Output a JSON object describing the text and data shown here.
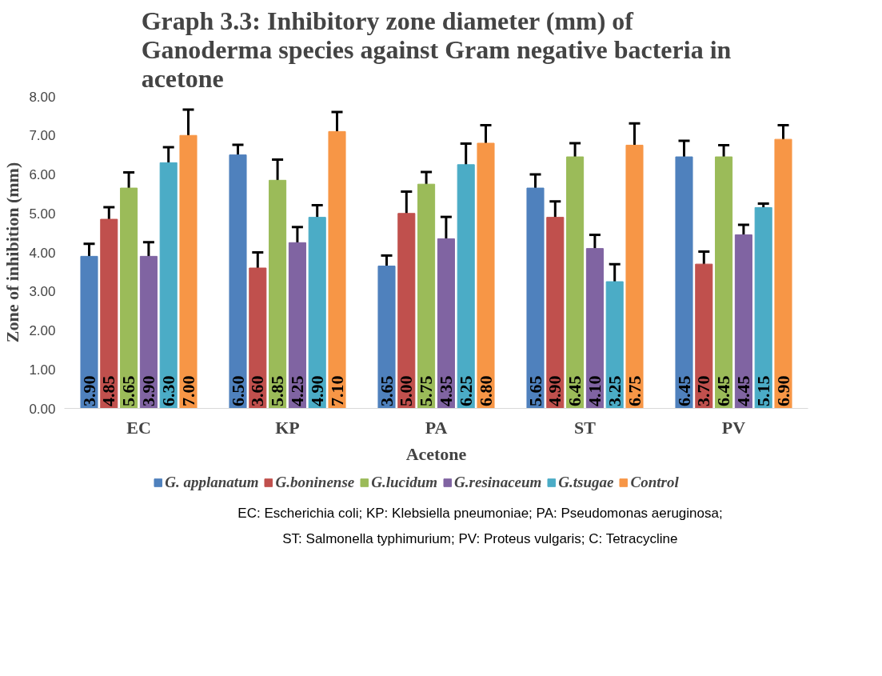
{
  "chart_data": {
    "type": "bar",
    "title": "Graph 3.3: Inhibitory zone diameter (mm) of Ganoderma species against Gram negative bacteria in acetone",
    "xlabel": "Acetone",
    "ylabel": "Zone of inhibition (mm)",
    "categories": [
      "EC",
      "KP",
      "PA",
      "ST",
      "PV"
    ],
    "series": [
      {
        "name": "G. applanatum",
        "color": "#4f81bd",
        "values": [
          3.9,
          6.5,
          3.65,
          5.65,
          6.45
        ],
        "value_labels": [
          "3.90",
          "6.50",
          "3.65",
          "5.65",
          "6.45"
        ],
        "errors": [
          0.32,
          0.26,
          0.27,
          0.35,
          0.41
        ]
      },
      {
        "name": "G.boninense",
        "color": "#c0504d",
        "values": [
          4.85,
          3.6,
          5.0,
          4.9,
          3.7
        ],
        "value_labels": [
          "4.85",
          "3.60",
          "5.00",
          "4.90",
          "3.70"
        ],
        "errors": [
          0.31,
          0.4,
          0.56,
          0.41,
          0.32
        ]
      },
      {
        "name": "G.lucidum",
        "color": "#9bbb59",
        "values": [
          5.65,
          5.85,
          5.75,
          6.45,
          6.45
        ],
        "value_labels": [
          "5.65",
          "5.85",
          "5.75",
          "6.45",
          "6.45"
        ],
        "errors": [
          0.4,
          0.53,
          0.31,
          0.35,
          0.3
        ]
      },
      {
        "name": "G.resinaceum",
        "color": "#8064a2",
        "values": [
          3.9,
          4.25,
          4.35,
          4.1,
          4.45
        ],
        "value_labels": [
          "3.90",
          "4.25",
          "4.35",
          "4.10",
          "4.45"
        ],
        "errors": [
          0.36,
          0.4,
          0.56,
          0.35,
          0.26
        ]
      },
      {
        "name": "G.tsugae",
        "color": "#4bacc6",
        "values": [
          6.3,
          4.9,
          6.25,
          3.25,
          5.15
        ],
        "value_labels": [
          "6.30",
          "4.90",
          "6.25",
          "3.25",
          "5.15"
        ],
        "errors": [
          0.4,
          0.31,
          0.54,
          0.45,
          0.1
        ]
      },
      {
        "name": "Control",
        "color": "#f79646",
        "values": [
          7.0,
          7.1,
          6.8,
          6.75,
          6.9
        ],
        "value_labels": [
          "7.00",
          "7.10",
          "6.80",
          "6.75",
          "6.90"
        ],
        "errors": [
          0.66,
          0.5,
          0.46,
          0.56,
          0.36
        ]
      }
    ],
    "ylim": [
      0,
      8
    ],
    "yticks": [
      {
        "value": 0,
        "label": "0.00"
      },
      {
        "value": 1,
        "label": "1.00"
      },
      {
        "value": 2,
        "label": "2.00"
      },
      {
        "value": 3,
        "label": "3.00"
      },
      {
        "value": 4,
        "label": "4.00"
      },
      {
        "value": 5,
        "label": "5.00"
      },
      {
        "value": 6,
        "label": "6.00"
      },
      {
        "value": 7,
        "label": "7.00"
      },
      {
        "value": 8,
        "label": "8.00"
      }
    ],
    "legend": "bottom",
    "grid": false,
    "annotations": [
      "EC: Escherichia coli; KP: Klebsiella pneumoniae; PA: Pseudomonas aeruginosa;",
      "ST: Salmonella typhimurium; PV: Proteus vulgaris; C: Tetracycline"
    ]
  }
}
